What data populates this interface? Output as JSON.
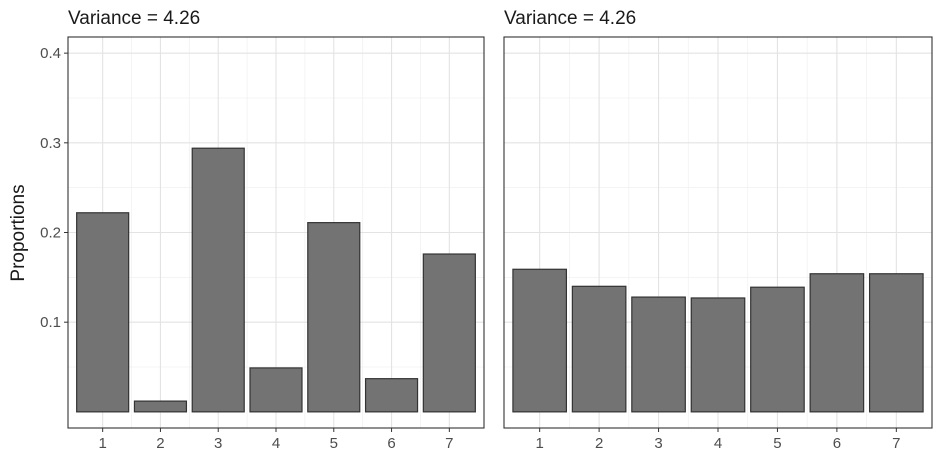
{
  "ylabel": "Proportions",
  "colors": {
    "bar_fill": "#737373",
    "bar_stroke": "#333333"
  },
  "chart_data": [
    {
      "type": "bar",
      "title": "Variance =  4.26",
      "categories": [
        "1",
        "2",
        "3",
        "4",
        "5",
        "6",
        "7"
      ],
      "values": [
        0.222,
        0.012,
        0.294,
        0.049,
        0.211,
        0.037,
        0.176
      ],
      "ylim": [
        0,
        0.4
      ],
      "yticks": [
        0.1,
        0.2,
        0.3,
        0.4
      ],
      "ytick_labels": [
        "0.1",
        "0.2",
        "0.3",
        "0.4"
      ],
      "grid": true
    },
    {
      "type": "bar",
      "title": "Variance =  4.26",
      "categories": [
        "1",
        "2",
        "3",
        "4",
        "5",
        "6",
        "7"
      ],
      "values": [
        0.159,
        0.14,
        0.128,
        0.127,
        0.139,
        0.154,
        0.154
      ],
      "ylim": [
        0,
        0.4
      ],
      "yticks": [
        0.1,
        0.2,
        0.3,
        0.4
      ],
      "grid": true
    }
  ]
}
